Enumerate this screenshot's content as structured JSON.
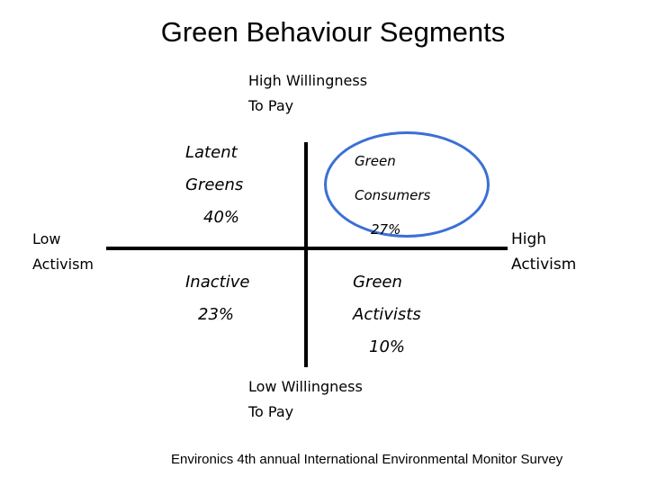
{
  "title": "Green Behaviour Segments",
  "axes": {
    "top": [
      "High Willingness",
      "To Pay"
    ],
    "bottom": [
      "Low Willingness",
      "To Pay"
    ],
    "left": [
      "Low",
      "Activism"
    ],
    "right": [
      "High",
      "Activism"
    ]
  },
  "segments": {
    "top_left": {
      "line1": "Latent",
      "line2": "Greens",
      "percent": "40%"
    },
    "top_right": {
      "line1": "Green",
      "line2": "Consumers",
      "percent": "27%"
    },
    "bottom_left": {
      "line1": "Inactive",
      "percent": "23%"
    },
    "bottom_right": {
      "line1": "Green",
      "line2": "Activists",
      "percent": "10%"
    }
  },
  "source": "Environics 4th annual International Environmental Monitor Survey",
  "colors": {
    "highlight": "#3b6fd6",
    "axis": "#000000"
  }
}
